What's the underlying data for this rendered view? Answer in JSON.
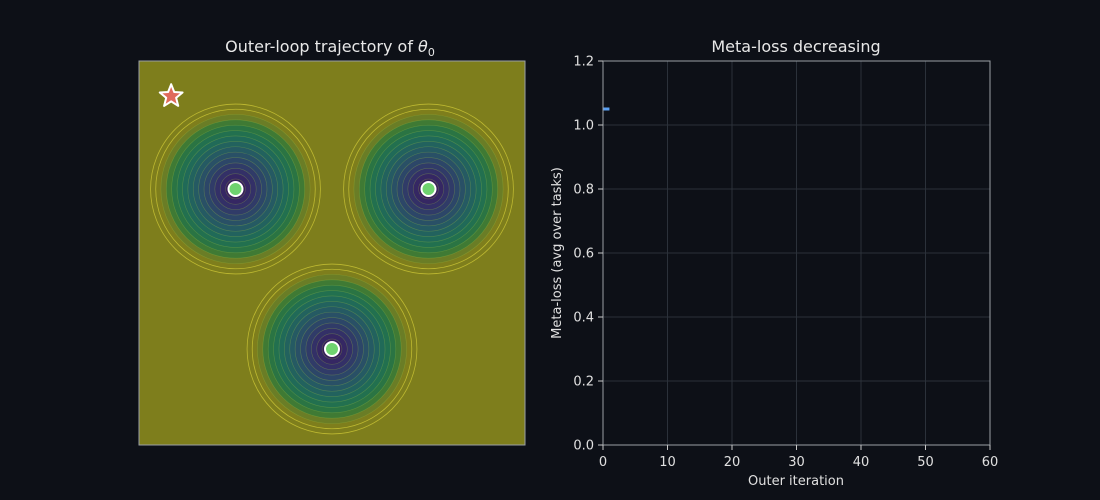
{
  "chart_data": [
    {
      "type": "contour",
      "title_main": "Outer-loop trajectory of ",
      "title_symbol": "θ",
      "title_subscript": "0",
      "xlim": [
        -3,
        3
      ],
      "ylim": [
        -3,
        3
      ],
      "colormap": "viridis",
      "task_centers": [
        {
          "x": -1.5,
          "y": 1.0
        },
        {
          "x": 1.5,
          "y": 1.0
        },
        {
          "x": 0.0,
          "y": -1.5
        }
      ],
      "start_point": {
        "x": -2.5,
        "y": 2.45
      },
      "colors": {
        "plateau": "#7e7e1c",
        "task_marker": "#6fd36f",
        "start_marker": "#e06a5c",
        "outline": "#ffffff"
      }
    },
    {
      "type": "line",
      "title": "Meta-loss decreasing",
      "xlabel": "Outer iteration",
      "ylabel": "Meta-loss (avg over tasks)",
      "xlim": [
        0,
        60
      ],
      "ylim": [
        0,
        1.2
      ],
      "xticks": [
        0,
        10,
        20,
        30,
        40,
        50,
        60
      ],
      "yticks": [
        0.0,
        0.2,
        0.4,
        0.6,
        0.8,
        1.0,
        1.2
      ],
      "xtick_labels": [
        "0",
        "10",
        "20",
        "30",
        "40",
        "50",
        "60"
      ],
      "ytick_labels": [
        "0.0",
        "0.2",
        "0.4",
        "0.6",
        "0.8",
        "1.0",
        "1.2"
      ],
      "grid": true,
      "series": [
        {
          "x": [
            0,
            1
          ],
          "values": [
            1.05,
            1.05
          ],
          "color": "#5aa0f2"
        }
      ]
    }
  ]
}
